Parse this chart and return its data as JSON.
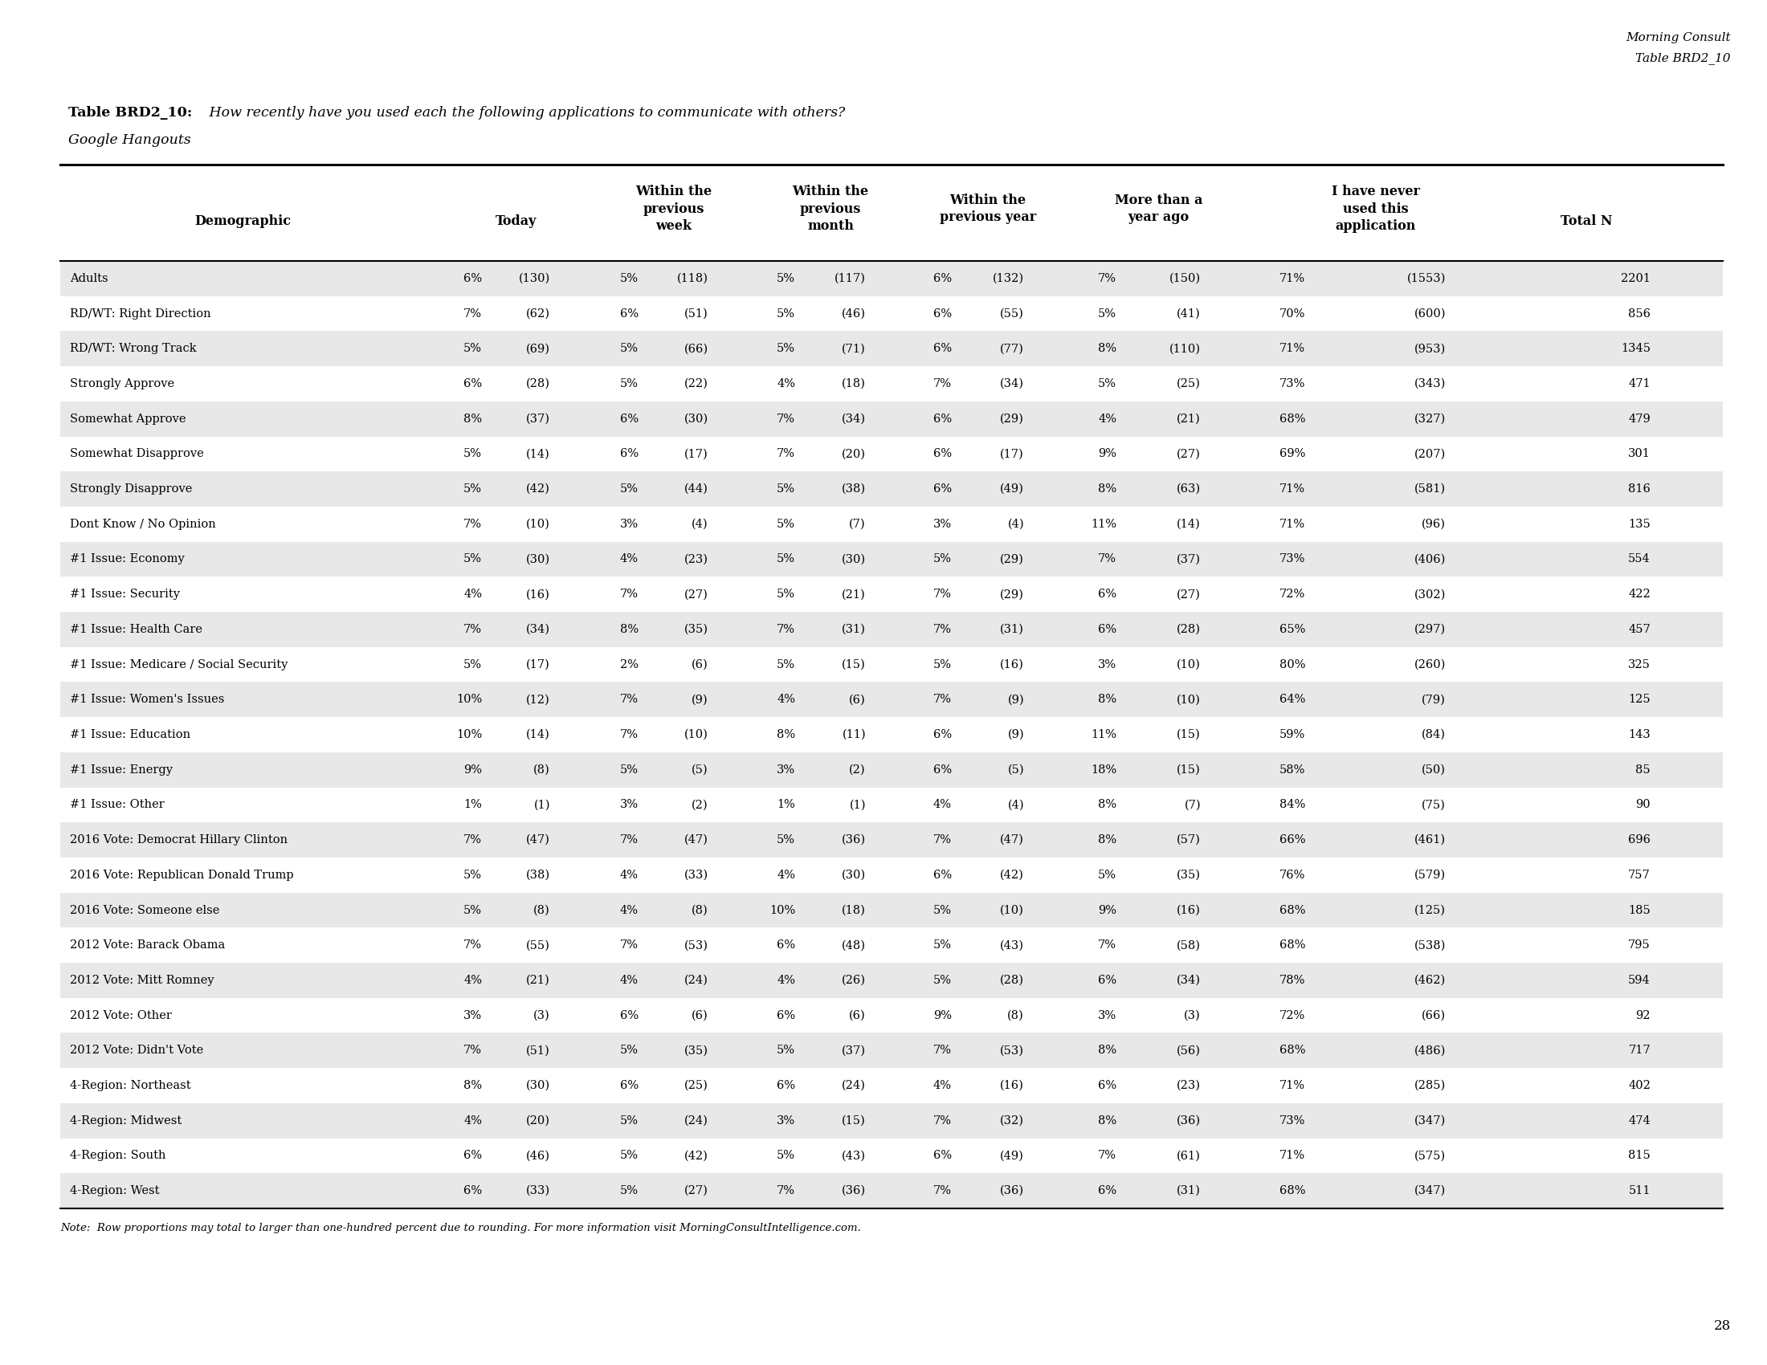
{
  "watermark_line1": "Morning Consult",
  "watermark_line2": "Table BRD2_10",
  "table_label": "Table BRD2_10:",
  "table_title": " How recently have you used each the following applications to communicate with others?",
  "table_subtitle": "Google Hangouts",
  "col_header_labels": [
    "Demographic",
    "Today",
    "Within the\nprevious\nweek",
    "Within the\nprevious\nmonth",
    "Within the\nprevious year",
    "More than a\nyear ago",
    "I have never\nused this\napplication",
    "Total N"
  ],
  "rows": [
    [
      "Adults",
      "6%",
      "(130)",
      "5%",
      "(118)",
      "5%",
      "(117)",
      "6%",
      "(132)",
      "7%",
      "(150)",
      "71%",
      "(1553)",
      "2201"
    ],
    [
      "RD/WT: Right Direction",
      "7%",
      "(62)",
      "6%",
      "(51)",
      "5%",
      "(46)",
      "6%",
      "(55)",
      "5%",
      "(41)",
      "70%",
      "(600)",
      "856"
    ],
    [
      "RD/WT: Wrong Track",
      "5%",
      "(69)",
      "5%",
      "(66)",
      "5%",
      "(71)",
      "6%",
      "(77)",
      "8%",
      "(110)",
      "71%",
      "(953)",
      "1345"
    ],
    [
      "Strongly Approve",
      "6%",
      "(28)",
      "5%",
      "(22)",
      "4%",
      "(18)",
      "7%",
      "(34)",
      "5%",
      "(25)",
      "73%",
      "(343)",
      "471"
    ],
    [
      "Somewhat Approve",
      "8%",
      "(37)",
      "6%",
      "(30)",
      "7%",
      "(34)",
      "6%",
      "(29)",
      "4%",
      "(21)",
      "68%",
      "(327)",
      "479"
    ],
    [
      "Somewhat Disapprove",
      "5%",
      "(14)",
      "6%",
      "(17)",
      "7%",
      "(20)",
      "6%",
      "(17)",
      "9%",
      "(27)",
      "69%",
      "(207)",
      "301"
    ],
    [
      "Strongly Disapprove",
      "5%",
      "(42)",
      "5%",
      "(44)",
      "5%",
      "(38)",
      "6%",
      "(49)",
      "8%",
      "(63)",
      "71%",
      "(581)",
      "816"
    ],
    [
      "Dont Know / No Opinion",
      "7%",
      "(10)",
      "3%",
      "(4)",
      "5%",
      "(7)",
      "3%",
      "(4)",
      "11%",
      "(14)",
      "71%",
      "(96)",
      "135"
    ],
    [
      "#1 Issue: Economy",
      "5%",
      "(30)",
      "4%",
      "(23)",
      "5%",
      "(30)",
      "5%",
      "(29)",
      "7%",
      "(37)",
      "73%",
      "(406)",
      "554"
    ],
    [
      "#1 Issue: Security",
      "4%",
      "(16)",
      "7%",
      "(27)",
      "5%",
      "(21)",
      "7%",
      "(29)",
      "6%",
      "(27)",
      "72%",
      "(302)",
      "422"
    ],
    [
      "#1 Issue: Health Care",
      "7%",
      "(34)",
      "8%",
      "(35)",
      "7%",
      "(31)",
      "7%",
      "(31)",
      "6%",
      "(28)",
      "65%",
      "(297)",
      "457"
    ],
    [
      "#1 Issue: Medicare / Social Security",
      "5%",
      "(17)",
      "2%",
      "(6)",
      "5%",
      "(15)",
      "5%",
      "(16)",
      "3%",
      "(10)",
      "80%",
      "(260)",
      "325"
    ],
    [
      "#1 Issue: Women's Issues",
      "10%",
      "(12)",
      "7%",
      "(9)",
      "4%",
      "(6)",
      "7%",
      "(9)",
      "8%",
      "(10)",
      "64%",
      "(79)",
      "125"
    ],
    [
      "#1 Issue: Education",
      "10%",
      "(14)",
      "7%",
      "(10)",
      "8%",
      "(11)",
      "6%",
      "(9)",
      "11%",
      "(15)",
      "59%",
      "(84)",
      "143"
    ],
    [
      "#1 Issue: Energy",
      "9%",
      "(8)",
      "5%",
      "(5)",
      "3%",
      "(2)",
      "6%",
      "(5)",
      "18%",
      "(15)",
      "58%",
      "(50)",
      "85"
    ],
    [
      "#1 Issue: Other",
      "1%",
      "(1)",
      "3%",
      "(2)",
      "1%",
      "(1)",
      "4%",
      "(4)",
      "8%",
      "(7)",
      "84%",
      "(75)",
      "90"
    ],
    [
      "2016 Vote: Democrat Hillary Clinton",
      "7%",
      "(47)",
      "7%",
      "(47)",
      "5%",
      "(36)",
      "7%",
      "(47)",
      "8%",
      "(57)",
      "66%",
      "(461)",
      "696"
    ],
    [
      "2016 Vote: Republican Donald Trump",
      "5%",
      "(38)",
      "4%",
      "(33)",
      "4%",
      "(30)",
      "6%",
      "(42)",
      "5%",
      "(35)",
      "76%",
      "(579)",
      "757"
    ],
    [
      "2016 Vote: Someone else",
      "5%",
      "(8)",
      "4%",
      "(8)",
      "10%",
      "(18)",
      "5%",
      "(10)",
      "9%",
      "(16)",
      "68%",
      "(125)",
      "185"
    ],
    [
      "2012 Vote: Barack Obama",
      "7%",
      "(55)",
      "7%",
      "(53)",
      "6%",
      "(48)",
      "5%",
      "(43)",
      "7%",
      "(58)",
      "68%",
      "(538)",
      "795"
    ],
    [
      "2012 Vote: Mitt Romney",
      "4%",
      "(21)",
      "4%",
      "(24)",
      "4%",
      "(26)",
      "5%",
      "(28)",
      "6%",
      "(34)",
      "78%",
      "(462)",
      "594"
    ],
    [
      "2012 Vote: Other",
      "3%",
      "(3)",
      "6%",
      "(6)",
      "6%",
      "(6)",
      "9%",
      "(8)",
      "3%",
      "(3)",
      "72%",
      "(66)",
      "92"
    ],
    [
      "2012 Vote: Didn't Vote",
      "7%",
      "(51)",
      "5%",
      "(35)",
      "5%",
      "(37)",
      "7%",
      "(53)",
      "8%",
      "(56)",
      "68%",
      "(486)",
      "717"
    ],
    [
      "4-Region: Northeast",
      "8%",
      "(30)",
      "6%",
      "(25)",
      "6%",
      "(24)",
      "4%",
      "(16)",
      "6%",
      "(23)",
      "71%",
      "(285)",
      "402"
    ],
    [
      "4-Region: Midwest",
      "4%",
      "(20)",
      "5%",
      "(24)",
      "3%",
      "(15)",
      "7%",
      "(32)",
      "8%",
      "(36)",
      "73%",
      "(347)",
      "474"
    ],
    [
      "4-Region: South",
      "6%",
      "(46)",
      "5%",
      "(42)",
      "5%",
      "(43)",
      "6%",
      "(49)",
      "7%",
      "(61)",
      "71%",
      "(575)",
      "815"
    ],
    [
      "4-Region: West",
      "6%",
      "(33)",
      "5%",
      "(27)",
      "7%",
      "(36)",
      "7%",
      "(36)",
      "6%",
      "(31)",
      "68%",
      "(347)",
      "511"
    ]
  ],
  "note": "Note:  Row proportions may total to larger than one-hundred percent due to rounding. For more information visit MorningConsultIntelligence.com.",
  "page_number": "28",
  "row_bg_odd": "#e8e8e8",
  "row_bg_even": "#ffffff",
  "font_family": "DejaVu Serif"
}
